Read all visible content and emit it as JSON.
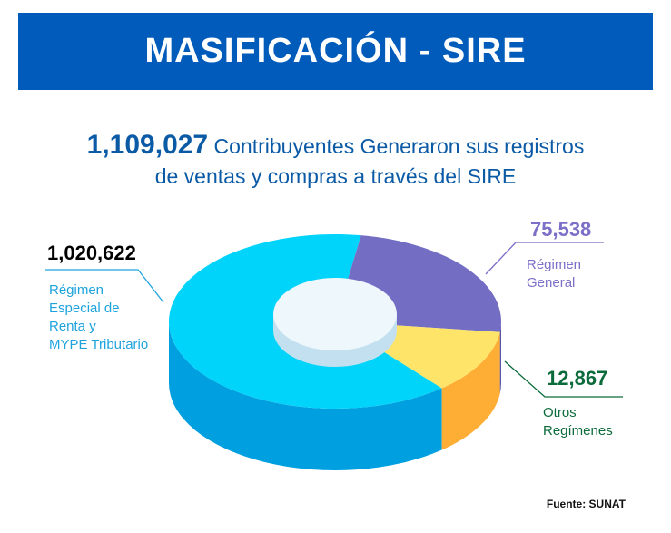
{
  "header": {
    "title": "MASIFICACIÓN - SIRE"
  },
  "subtitle": {
    "total": "1,109,027",
    "text_line1": "Contribuyentes Generaron sus registros",
    "text_line2": "de ventas y compras a través del SIRE"
  },
  "chart_data": {
    "type": "pie",
    "style": "3d-donut",
    "slices": [
      {
        "label": "Régimen Especial de Renta y MYPE Tributario",
        "value": 1020622,
        "value_text": "1,020,622",
        "color": "#00d4fa",
        "side_color": "#009fe0",
        "label_color": "#1ea3dd"
      },
      {
        "label": "Régimen General",
        "value": 75538,
        "value_text": "75,538",
        "color": "#736dc4",
        "side_color": "#5a55a8",
        "label_color": "#7b6fc8"
      },
      {
        "label": "Otros Regímenes",
        "value": 12867,
        "value_text": "12,867",
        "color": "#ffe46a",
        "side_color": "#ffae35",
        "label_color": "#0b6b3a"
      }
    ]
  },
  "labels": {
    "mype": [
      "Régimen",
      "Especial de",
      "Renta y",
      "MYPE Tributario"
    ],
    "general": [
      "Régimen",
      "General"
    ],
    "otros": [
      "Otros",
      "Regímenes"
    ]
  },
  "source": "Fuente: SUNAT"
}
